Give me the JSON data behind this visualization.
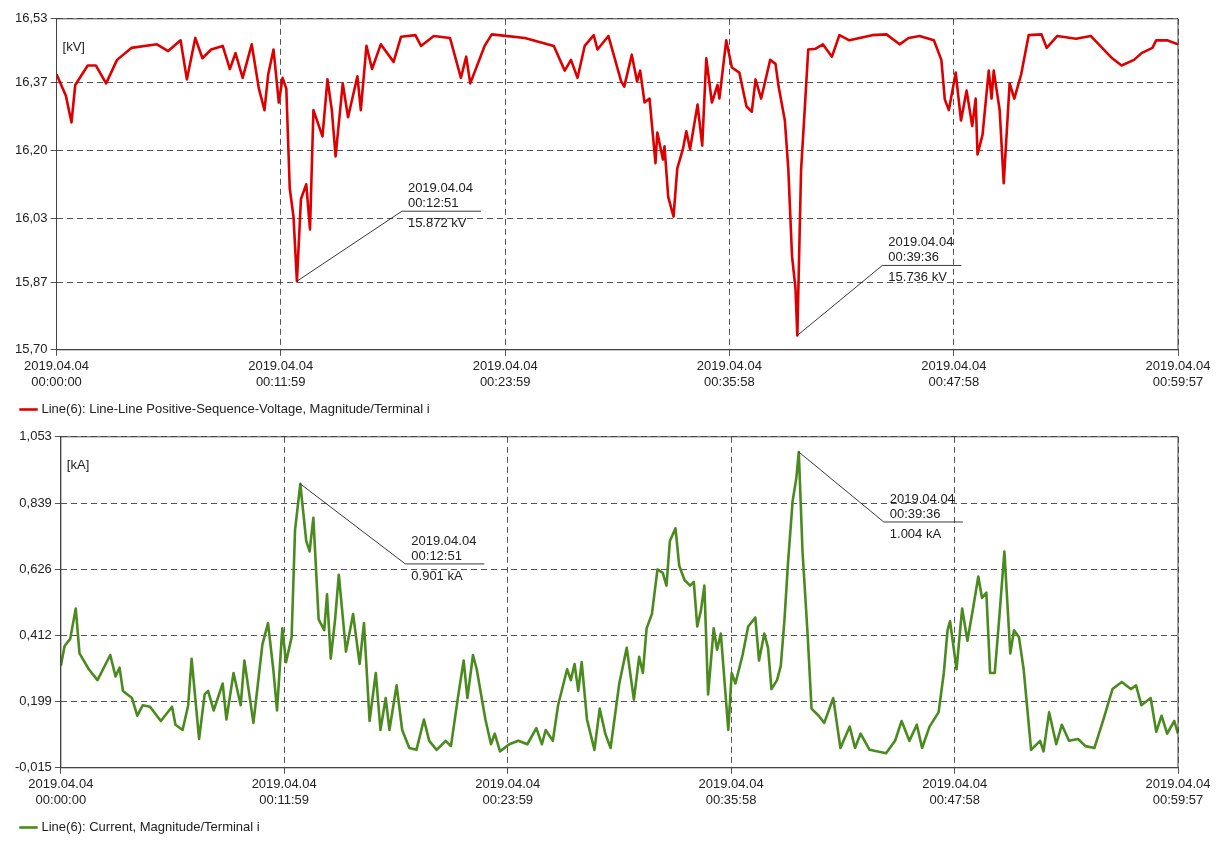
{
  "chart_data": [
    {
      "type": "line",
      "ylabel": "[kV]",
      "xlim": [
        "2019-04-04T00:00:00",
        "2019-04-04T00:59:57"
      ],
      "ylim": [
        15.7,
        16.53
      ],
      "grid": true,
      "legend": "bottom left",
      "marker": "none",
      "line_style": "solid",
      "xticks": [
        {
          "value": "2019-04-04T00:00:00",
          "label": "2019.04.04\n00:00:00"
        },
        {
          "value": "2019-04-04T00:11:59",
          "label": "2019.04.04\n00:11:59"
        },
        {
          "value": "2019-04-04T00:23:59",
          "label": "2019.04.04\n00:23:59"
        },
        {
          "value": "2019-04-04T00:35:58",
          "label": "2019.04.04\n00:35:58"
        },
        {
          "value": "2019-04-04T00:47:58",
          "label": "2019.04.04\n00:47:58"
        },
        {
          "value": "2019-04-04T00:59:57",
          "label": "2019.04.04\n00:59:57"
        }
      ],
      "yticks": [
        {
          "value": 15.7,
          "label": "15,70"
        },
        {
          "value": 15.87,
          "label": "15,87"
        },
        {
          "value": 16.03,
          "label": "16,03"
        },
        {
          "value": 16.2,
          "label": "16,20"
        },
        {
          "value": 16.37,
          "label": "16,37"
        },
        {
          "value": 16.53,
          "label": "16,53"
        }
      ],
      "annotations": [
        {
          "text": "2019.04.04\n00:12:51\n15.872 kV",
          "x": "2019-04-04T00:12:51",
          "y": 15.872
        },
        {
          "text": "2019.04.04\n00:39:36\n15.736 kV",
          "x": "2019-04-04T00:39:36",
          "y": 15.736
        }
      ],
      "series": [
        {
          "name": "Line(6): Line-Line Positive-Sequence-Voltage, Magnitude/Terminal i",
          "color": "#dd0000",
          "x": [
            "2019-04-04T00:00:00",
            "2019-04-04T00:00:30",
            "2019-04-04T00:00:48",
            "2019-04-04T00:01:00",
            "2019-04-04T00:01:40",
            "2019-04-04T00:02:06",
            "2019-04-04T00:02:39",
            "2019-04-04T00:03:14",
            "2019-04-04T00:04:00",
            "2019-04-04T00:05:22",
            "2019-04-04T00:05:58",
            "2019-04-04T00:06:38",
            "2019-04-04T00:06:58",
            "2019-04-04T00:07:25",
            "2019-04-04T00:07:48",
            "2019-04-04T00:08:16",
            "2019-04-04T00:08:53",
            "2019-04-04T00:09:16",
            "2019-04-04T00:09:34",
            "2019-04-04T00:09:57",
            "2019-04-04T00:10:26",
            "2019-04-04T00:10:49",
            "2019-04-04T00:11:07",
            "2019-04-04T00:11:19",
            "2019-04-04T00:11:36",
            "2019-04-04T00:11:53",
            "2019-04-04T00:12:05",
            "2019-04-04T00:12:17",
            "2019-04-04T00:12:28",
            "2019-04-04T00:12:40",
            "2019-04-04T00:12:51",
            "2019-04-04T00:13:04",
            "2019-04-04T00:13:21",
            "2019-04-04T00:13:33",
            "2019-04-04T00:13:44",
            "2019-04-04T00:14:13",
            "2019-04-04T00:14:29",
            "2019-04-04T00:14:43",
            "2019-04-04T00:14:55",
            "2019-04-04T00:15:18",
            "2019-04-04T00:15:35",
            "2019-04-04T00:16:05",
            "2019-04-04T00:16:16",
            "2019-04-04T00:16:34",
            "2019-04-04T00:16:52",
            "2019-04-04T00:17:20",
            "2019-04-04T00:18:01",
            "2019-04-04T00:18:25",
            "2019-04-04T00:19:11",
            "2019-04-04T00:19:29",
            "2019-04-04T00:20:10",
            "2019-04-04T00:21:02",
            "2019-04-04T00:21:37",
            "2019-04-04T00:21:54",
            "2019-04-04T00:22:07",
            "2019-04-04T00:22:53",
            "2019-04-04T00:23:16",
            "2019-04-04T00:25:02",
            "2019-04-04T00:26:35",
            "2019-04-04T00:27:10",
            "2019-04-04T00:27:30",
            "2019-04-04T00:27:51",
            "2019-04-04T00:28:14",
            "2019-04-04T00:28:43",
            "2019-04-04T00:28:55",
            "2019-04-04T00:29:30",
            "2019-04-04T00:30:11",
            "2019-04-04T00:30:21",
            "2019-04-04T00:30:45",
            "2019-04-04T00:31:02",
            "2019-04-04T00:31:12",
            "2019-04-04T00:31:26",
            "2019-04-04T00:31:42",
            "2019-04-04T00:32:01",
            "2019-04-04T00:32:07",
            "2019-04-04T00:32:25",
            "2019-04-04T00:32:30",
            "2019-04-04T00:32:42",
            "2019-04-04T00:32:59",
            "2019-04-04T00:33:11",
            "2019-04-04T00:33:29",
            "2019-04-04T00:33:40",
            "2019-04-04T00:33:52",
            "2019-04-04T00:34:16",
            "2019-04-04T00:34:31",
            "2019-04-04T00:34:44",
            "2019-04-04T00:35:02",
            "2019-04-04T00:35:20",
            "2019-04-04T00:35:26",
            "2019-04-04T00:35:48",
            "2019-04-04T00:36:06",
            "2019-04-04T00:36:30",
            "2019-04-04T00:36:53",
            "2019-04-04T00:37:10",
            "2019-04-04T00:37:22",
            "2019-04-04T00:37:40",
            "2019-04-04T00:38:09",
            "2019-04-04T00:38:26",
            "2019-04-04T00:38:36",
            "2019-04-04T00:38:56",
            "2019-04-04T00:39:07",
            "2019-04-04T00:39:19",
            "2019-04-04T00:39:30",
            "2019-04-04T00:39:36",
            "2019-04-04T00:39:48",
            "2019-04-04T00:40:00",
            "2019-04-04T00:40:11",
            "2019-04-04T00:40:35",
            "2019-04-04T00:40:58",
            "2019-04-04T00:41:27",
            "2019-04-04T00:41:51",
            "2019-04-04T00:42:23",
            "2019-04-04T00:43:36",
            "2019-04-04T00:44:22",
            "2019-04-04T00:45:04",
            "2019-04-04T00:45:33",
            "2019-04-04T00:46:08",
            "2019-04-04T00:46:54",
            "2019-04-04T00:47:18",
            "2019-04-04T00:47:29",
            "2019-04-04T00:47:42",
            "2019-04-04T00:48:04",
            "2019-04-04T00:48:21",
            "2019-04-04T00:48:39",
            "2019-04-04T00:48:57",
            "2019-04-04T00:49:08",
            "2019-04-04T00:49:14",
            "2019-04-04T00:49:30",
            "2019-04-04T00:49:50",
            "2019-04-04T00:49:59",
            "2019-04-04T00:50:06",
            "2019-04-04T00:50:25",
            "2019-04-04T00:50:38",
            "2019-04-04T00:50:57",
            "2019-04-04T00:51:12",
            "2019-04-04T00:51:34",
            "2019-04-04T00:51:58",
            "2019-04-04T00:52:39",
            "2019-04-04T00:52:56",
            "2019-04-04T00:53:30",
            "2019-04-04T00:54:30",
            "2019-04-04T00:55:17",
            "2019-04-04T00:56:26",
            "2019-04-04T00:56:56",
            "2019-04-04T00:57:36",
            "2019-04-04T00:58:00",
            "2019-04-04T00:58:35",
            "2019-04-04T00:58:47",
            "2019-04-04T00:59:22",
            "2019-04-04T00:59:57"
          ],
          "values": [
            16.391,
            16.337,
            16.27,
            16.364,
            16.413,
            16.413,
            16.368,
            16.427,
            16.457,
            16.466,
            16.449,
            16.476,
            16.378,
            16.482,
            16.431,
            16.453,
            16.462,
            16.404,
            16.444,
            16.382,
            16.466,
            16.355,
            16.301,
            16.391,
            16.453,
            16.32,
            16.382,
            16.355,
            16.105,
            16.034,
            15.872,
            16.078,
            16.115,
            16.002,
            16.301,
            16.235,
            16.378,
            16.301,
            16.185,
            16.368,
            16.283,
            16.386,
            16.301,
            16.462,
            16.404,
            16.466,
            16.422,
            16.485,
            16.489,
            16.462,
            16.487,
            16.482,
            16.382,
            16.435,
            16.368,
            16.462,
            16.491,
            16.482,
            16.462,
            16.4,
            16.427,
            16.382,
            16.462,
            16.489,
            16.453,
            16.487,
            16.373,
            16.36,
            16.44,
            16.373,
            16.4,
            16.32,
            16.33,
            16.168,
            16.245,
            16.177,
            16.21,
            16.083,
            16.034,
            16.155,
            16.203,
            16.248,
            16.203,
            16.315,
            16.212,
            16.431,
            16.32,
            16.364,
            16.33,
            16.476,
            16.408,
            16.395,
            16.31,
            16.297,
            16.378,
            16.33,
            16.427,
            16.417,
            16.36,
            16.275,
            16.155,
            15.935,
            15.855,
            15.736,
            16.15,
            16.306,
            16.453,
            16.455,
            16.466,
            16.435,
            16.489,
            16.476,
            16.489,
            16.491,
            16.466,
            16.482,
            16.487,
            16.476,
            16.427,
            16.328,
            16.301,
            16.395,
            16.275,
            16.35,
            16.261,
            16.33,
            16.19,
            16.239,
            16.4,
            16.33,
            16.4,
            16.301,
            16.118,
            16.368,
            16.33,
            16.391,
            16.489,
            16.491,
            16.457,
            16.487,
            16.48,
            16.487,
            16.431,
            16.413,
            16.427,
            16.444,
            16.457,
            16.476,
            16.476,
            16.466
          ]
        }
      ]
    },
    {
      "type": "line",
      "ylabel": "[kA]",
      "xlim": [
        "2019-04-04T00:00:00",
        "2019-04-04T00:59:57"
      ],
      "ylim": [
        -0.015,
        1.053
      ],
      "grid": true,
      "legend": "bottom left",
      "marker": "none",
      "line_style": "solid",
      "xticks": [
        {
          "value": "2019-04-04T00:00:00",
          "label": "2019.04.04\n00:00:00"
        },
        {
          "value": "2019-04-04T00:11:59",
          "label": "2019.04.04\n00:11:59"
        },
        {
          "value": "2019-04-04T00:23:59",
          "label": "2019.04.04\n00:23:59"
        },
        {
          "value": "2019-04-04T00:35:58",
          "label": "2019.04.04\n00:35:58"
        },
        {
          "value": "2019-04-04T00:47:58",
          "label": "2019.04.04\n00:47:58"
        },
        {
          "value": "2019-04-04T00:59:57",
          "label": "2019.04.04\n00:59:57"
        }
      ],
      "yticks": [
        {
          "value": -0.015,
          "label": "-0,015"
        },
        {
          "value": 0.199,
          "label": "0,199"
        },
        {
          "value": 0.412,
          "label": "0,412"
        },
        {
          "value": 0.626,
          "label": "0,626"
        },
        {
          "value": 0.839,
          "label": "0,839"
        },
        {
          "value": 1.053,
          "label": "1,053"
        }
      ],
      "annotations": [
        {
          "text": "2019.04.04\n00:12:51\n0.901 kA",
          "x": "2019-04-04T00:12:51",
          "y": 0.901
        },
        {
          "text": "2019.04.04\n00:39:36\n1.004 kA",
          "x": "2019-04-04T00:39:36",
          "y": 1.004
        }
      ],
      "series": [
        {
          "name": "Line(6): Current, Magnitude/Terminal i",
          "color": "#4a8a1e",
          "x": [
            "2019-04-04T00:00:00",
            "2019-04-04T00:00:12",
            "2019-04-04T00:00:30",
            "2019-04-04T00:00:48",
            "2019-04-04T00:01:00",
            "2019-04-04T00:01:30",
            "2019-04-04T00:01:58",
            "2019-04-04T00:02:39",
            "2019-04-04T00:02:56",
            "2019-04-04T00:03:09",
            "2019-04-04T00:03:20",
            "2019-04-04T00:03:49",
            "2019-04-04T00:04:06",
            "2019-04-04T00:04:24",
            "2019-04-04T00:04:47",
            "2019-04-04T00:05:22",
            "2019-04-04T00:05:58",
            "2019-04-04T00:06:09",
            "2019-04-04T00:06:32",
            "2019-04-04T00:06:50",
            "2019-04-04T00:07:01",
            "2019-04-04T00:07:25",
            "2019-04-04T00:07:43",
            "2019-04-04T00:07:54",
            "2019-04-04T00:08:12",
            "2019-04-04T00:08:41",
            "2019-04-04T00:08:53",
            "2019-04-04T00:09:16",
            "2019-04-04T00:09:39",
            "2019-04-04T00:09:51",
            "2019-04-04T00:10:20",
            "2019-04-04T00:10:49",
            "2019-04-04T00:11:07",
            "2019-04-04T00:11:24",
            "2019-04-04T00:11:36",
            "2019-04-04T00:11:53",
            "2019-04-04T00:12:05",
            "2019-04-04T00:12:23",
            "2019-04-04T00:12:34",
            "2019-04-04T00:12:51",
            "2019-04-04T00:13:10",
            "2019-04-04T00:13:21",
            "2019-04-04T00:13:33",
            "2019-04-04T00:13:50",
            "2019-04-04T00:14:08",
            "2019-04-04T00:14:17",
            "2019-04-04T00:14:29",
            "2019-04-04T00:14:43",
            "2019-04-04T00:14:55",
            "2019-04-04T00:15:18",
            "2019-04-04T00:15:41",
            "2019-04-04T00:16:02",
            "2019-04-04T00:16:16",
            "2019-04-04T00:16:34",
            "2019-04-04T00:16:54",
            "2019-04-04T00:17:09",
            "2019-04-04T00:17:26",
            "2019-04-04T00:17:38",
            "2019-04-04T00:18:01",
            "2019-04-04T00:18:19",
            "2019-04-04T00:18:42",
            "2019-04-04T00:19:05",
            "2019-04-04T00:19:29",
            "2019-04-04T00:19:46",
            "2019-04-04T00:20:10",
            "2019-04-04T00:20:39",
            "2019-04-04T00:20:56",
            "2019-04-04T00:21:20",
            "2019-04-04T00:21:37",
            "2019-04-04T00:21:49",
            "2019-04-04T00:22:07",
            "2019-04-04T00:22:19",
            "2019-04-04T00:22:47",
            "2019-04-04T00:23:05",
            "2019-04-04T00:23:17",
            "2019-04-04T00:23:34",
            "2019-04-04T00:24:04",
            "2019-04-04T00:24:33",
            "2019-04-04T00:25:02",
            "2019-04-04T00:25:31",
            "2019-04-04T00:25:49",
            "2019-04-04T00:26:01",
            "2019-04-04T00:26:24",
            "2019-04-04T00:26:41",
            "2019-04-04T00:27:10",
            "2019-04-04T00:27:22",
            "2019-04-04T00:27:34",
            "2019-04-04T00:27:46",
            "2019-04-04T00:27:57",
            "2019-04-04T00:28:14",
            "2019-04-04T00:28:38",
            "2019-04-04T00:28:55",
            "2019-04-04T00:29:13",
            "2019-04-04T00:29:30",
            "2019-04-04T00:29:58",
            "2019-04-04T00:30:22",
            "2019-04-04T00:30:45",
            "2019-04-04T00:31:02",
            "2019-04-04T00:31:14",
            "2019-04-04T00:31:26",
            "2019-04-04T00:31:43",
            "2019-04-04T00:32:01",
            "2019-04-04T00:32:18",
            "2019-04-04T00:32:30",
            "2019-04-04T00:32:41",
            "2019-04-04T00:32:59",
            "2019-04-04T00:33:11",
            "2019-04-04T00:33:28",
            "2019-04-04T00:33:46",
            "2019-04-04T00:33:58",
            "2019-04-04T00:34:09",
            "2019-04-04T00:34:21",
            "2019-04-04T00:34:32",
            "2019-04-04T00:34:44",
            "2019-04-04T00:35:02",
            "2019-04-04T00:35:13",
            "2019-04-04T00:35:25",
            "2019-04-04T00:35:49",
            "2019-04-04T00:36:00",
            "2019-04-04T00:36:12",
            "2019-04-04T00:36:35",
            "2019-04-04T00:36:53",
            "2019-04-04T00:37:16",
            "2019-04-04T00:37:28",
            "2019-04-04T00:37:45",
            "2019-04-04T00:37:57",
            "2019-04-04T00:38:08",
            "2019-04-04T00:38:26",
            "2019-04-04T00:38:38",
            "2019-04-04T00:38:50",
            "2019-04-04T00:39:01",
            "2019-04-04T00:39:16",
            "2019-04-04T00:39:28",
            "2019-04-04T00:39:36",
            "2019-04-04T00:39:48",
            "2019-04-04T00:40:05",
            "2019-04-04T00:40:17",
            "2019-04-04T00:40:40",
            "2019-04-04T00:40:58",
            "2019-04-04T00:41:27",
            "2019-04-04T00:41:50",
            "2019-04-04T00:42:20",
            "2019-04-04T00:42:37",
            "2019-04-04T00:42:55",
            "2019-04-04T00:43:24",
            "2019-04-04T00:44:17",
            "2019-04-04T00:44:46",
            "2019-04-04T00:45:07",
            "2019-04-04T00:45:32",
            "2019-04-04T00:45:56",
            "2019-04-04T00:46:13",
            "2019-04-04T00:46:37",
            "2019-04-04T00:47:06",
            "2019-04-04T00:47:23",
            "2019-04-04T00:47:35",
            "2019-04-04T00:47:43",
            "2019-04-04T00:48:04",
            "2019-04-04T00:48:22",
            "2019-04-04T00:48:39",
            "2019-04-04T00:48:57",
            "2019-04-04T00:49:14",
            "2019-04-04T00:49:26",
            "2019-04-04T00:49:40",
            "2019-04-04T00:49:52",
            "2019-04-04T00:50:07",
            "2019-04-04T00:50:22",
            "2019-04-04T00:50:38",
            "2019-04-04T00:50:57",
            "2019-04-04T00:51:09",
            "2019-04-04T00:51:25",
            "2019-04-04T00:51:40",
            "2019-04-04T00:52:04",
            "2019-04-04T00:52:33",
            "2019-04-04T00:52:44",
            "2019-04-04T00:53:02",
            "2019-04-04T00:53:25",
            "2019-04-04T00:53:43",
            "2019-04-04T00:54:06",
            "2019-04-04T00:54:35",
            "2019-04-04T00:54:59",
            "2019-04-04T00:55:28",
            "2019-04-04T00:55:57",
            "2019-04-04T00:56:26",
            "2019-04-04T00:56:56",
            "2019-04-04T00:57:25",
            "2019-04-04T00:57:42",
            "2019-04-04T00:57:59",
            "2019-04-04T00:58:29",
            "2019-04-04T00:58:47",
            "2019-04-04T00:59:04",
            "2019-04-04T00:59:22",
            "2019-04-04T00:59:45",
            "2019-04-04T00:59:57"
          ],
          "values": [
            0.314,
            0.378,
            0.401,
            0.499,
            0.354,
            0.303,
            0.268,
            0.349,
            0.28,
            0.308,
            0.233,
            0.21,
            0.153,
            0.187,
            0.182,
            0.136,
            0.182,
            0.124,
            0.107,
            0.187,
            0.337,
            0.078,
            0.222,
            0.233,
            0.17,
            0.257,
            0.141,
            0.291,
            0.187,
            0.331,
            0.13,
            0.383,
            0.452,
            0.303,
            0.17,
            0.435,
            0.326,
            0.406,
            0.752,
            0.901,
            0.717,
            0.683,
            0.792,
            0.464,
            0.429,
            0.545,
            0.337,
            0.464,
            0.608,
            0.36,
            0.481,
            0.32,
            0.452,
            0.136,
            0.291,
            0.107,
            0.21,
            0.107,
            0.251,
            0.107,
            0.049,
            0.043,
            0.141,
            0.072,
            0.043,
            0.072,
            0.055,
            0.222,
            0.331,
            0.21,
            0.349,
            0.303,
            0.141,
            0.061,
            0.095,
            0.038,
            0.061,
            0.072,
            0.061,
            0.113,
            0.061,
            0.107,
            0.072,
            0.187,
            0.303,
            0.268,
            0.32,
            0.233,
            0.326,
            0.141,
            0.043,
            0.176,
            0.095,
            0.049,
            0.257,
            0.372,
            0.205,
            0.343,
            0.291,
            0.435,
            0.481,
            0.625,
            0.614,
            0.573,
            0.717,
            0.758,
            0.637,
            0.591,
            0.573,
            0.585,
            0.441,
            0.493,
            0.573,
            0.222,
            0.435,
            0.366,
            0.418,
            0.107,
            0.291,
            0.257,
            0.349,
            0.441,
            0.47,
            0.331,
            0.418,
            0.372,
            0.239,
            0.268,
            0.314,
            0.464,
            0.642,
            0.844,
            0.919,
            1.004,
            0.683,
            0.406,
            0.176,
            0.153,
            0.13,
            0.21,
            0.049,
            0.118,
            0.049,
            0.095,
            0.043,
            0.032,
            0.072,
            0.136,
            0.072,
            0.124,
            0.049,
            0.118,
            0.164,
            0.291,
            0.429,
            0.458,
            0.303,
            0.499,
            0.395,
            0.499,
            0.602,
            0.533,
            0.55,
            0.291,
            0.291,
            0.475,
            0.683,
            0.354,
            0.429,
            0.406,
            0.303,
            0.043,
            0.072,
            0.038,
            0.164,
            0.061,
            0.124,
            0.072,
            0.078,
            0.055,
            0.049,
            0.141,
            0.239,
            0.262,
            0.239,
            0.251,
            0.187,
            0.21,
            0.101,
            0.153,
            0.095,
            0.136,
            0.095
          ]
        }
      ]
    }
  ]
}
